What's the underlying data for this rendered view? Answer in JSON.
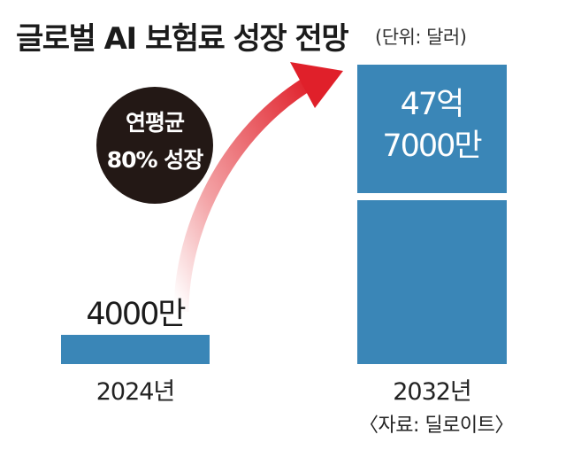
{
  "title": "글로벌 AI 보험료 성장 전망",
  "unit_note": "(단위: 달러)",
  "source": "〈자료: 딜로이트〉",
  "callout": {
    "line1": "연평균",
    "line2": "80% 성장"
  },
  "colors": {
    "bar": "#3a86b7",
    "arrow": "#e0202a",
    "callout_bg": "#231815",
    "text": "#1b1b1b"
  },
  "chart_data": {
    "type": "bar",
    "categories": [
      "2024년",
      "2032년"
    ],
    "values": [
      40000000,
      4770000000
    ],
    "data_labels": [
      "4000만",
      "47억\n7000만"
    ],
    "title": "글로벌 AI 보험료 성장 전망",
    "unit": "달러",
    "xlabel": "",
    "ylabel": "",
    "grid": false,
    "legend": "none"
  }
}
